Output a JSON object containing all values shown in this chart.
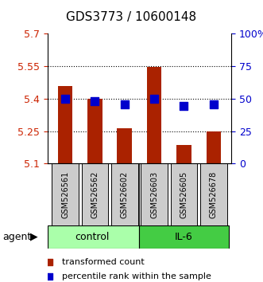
{
  "title": "GDS3773 / 10600148",
  "samples": [
    "GSM526561",
    "GSM526562",
    "GSM526602",
    "GSM526603",
    "GSM526605",
    "GSM526678"
  ],
  "groups": [
    "control",
    "control",
    "control",
    "IL-6",
    "IL-6",
    "IL-6"
  ],
  "bar_values": [
    5.46,
    5.4,
    5.265,
    5.548,
    5.185,
    5.248
  ],
  "dot_values": [
    5.4,
    5.39,
    5.375,
    5.4,
    5.365,
    5.375
  ],
  "bar_color": "#aa2200",
  "dot_color": "#0000cc",
  "ymin": 5.1,
  "ymax": 5.7,
  "yticks": [
    5.1,
    5.25,
    5.4,
    5.55,
    5.7
  ],
  "ytick_labels": [
    "5.1",
    "5.25",
    "5.4",
    "5.55",
    "5.7"
  ],
  "right_yticks": [
    0,
    25,
    50,
    75,
    100
  ],
  "right_ytick_labels": [
    "0",
    "25",
    "50",
    "75",
    "100%"
  ],
  "group_colors": {
    "control": "#aaffaa",
    "IL-6": "#44cc44"
  },
  "group_label_color": "#000000",
  "agent_label": "agent",
  "bar_width": 0.5,
  "dot_size": 50
}
